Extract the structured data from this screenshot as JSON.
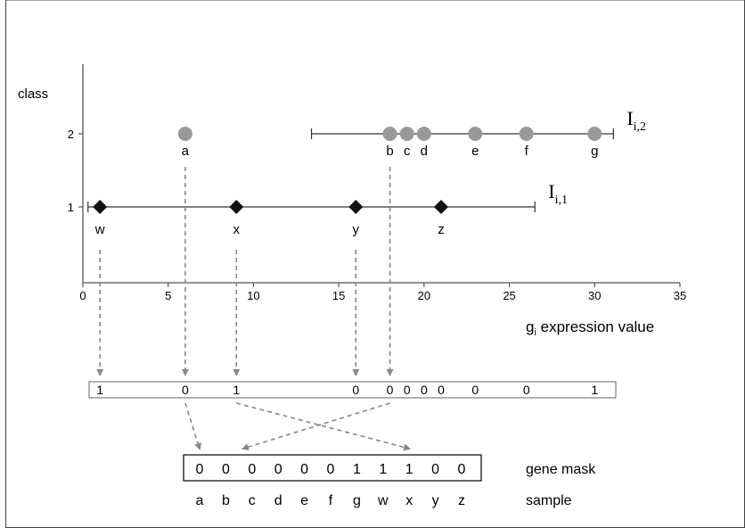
{
  "chart_data": {
    "type": "scatter",
    "ylabel": "class",
    "xlabel_sub": "i",
    "xlabel_rest": " expression value",
    "xlabel_g": "g",
    "xlim": [
      0,
      35
    ],
    "x_ticks": [
      0,
      5,
      10,
      15,
      20,
      25,
      30,
      35
    ],
    "y_ticks": [
      1,
      2
    ],
    "series": [
      {
        "class": 2,
        "marker": "circle",
        "color": "#999999",
        "points": [
          {
            "label": "a",
            "x": 6
          },
          {
            "label": "b",
            "x": 18
          },
          {
            "label": "c",
            "x": 19
          },
          {
            "label": "d",
            "x": 20
          },
          {
            "label": "e",
            "x": 23
          },
          {
            "label": "f",
            "x": 26
          },
          {
            "label": "g",
            "x": 30
          }
        ],
        "interval": {
          "from": 13.4,
          "to": 31.1,
          "label_main": "I",
          "label_sub": "i,2"
        }
      },
      {
        "class": 1,
        "marker": "diamond",
        "color": "#111111",
        "points": [
          {
            "label": "w",
            "x": 1
          },
          {
            "label": "x",
            "x": 9
          },
          {
            "label": "y",
            "x": 16
          },
          {
            "label": "z",
            "x": 21
          }
        ],
        "interval": {
          "from": 0.3,
          "to": 26.5,
          "label_main": "I",
          "label_sub": "i,1"
        }
      }
    ]
  },
  "mid_row": {
    "cells": [
      {
        "value": "1",
        "x": 1
      },
      {
        "value": "0",
        "x": 6
      },
      {
        "value": "1",
        "x": 9
      },
      {
        "value": "0",
        "x": 16
      },
      {
        "value": "0",
        "x": 18
      },
      {
        "value": "0",
        "x": 19
      },
      {
        "value": "0",
        "x": 20
      },
      {
        "value": "0",
        "x": 21
      },
      {
        "value": "0",
        "x": 23
      },
      {
        "value": "0",
        "x": 26
      },
      {
        "value": "1",
        "x": 30
      }
    ]
  },
  "gene_mask": {
    "values": [
      "0",
      "0",
      "0",
      "0",
      "0",
      "0",
      "1",
      "1",
      "1",
      "0",
      "0"
    ],
    "samples": [
      "a",
      "b",
      "c",
      "d",
      "e",
      "f",
      "g",
      "w",
      "x",
      "y",
      "z"
    ],
    "mask_label": "gene mask",
    "sample_label": "sample"
  }
}
